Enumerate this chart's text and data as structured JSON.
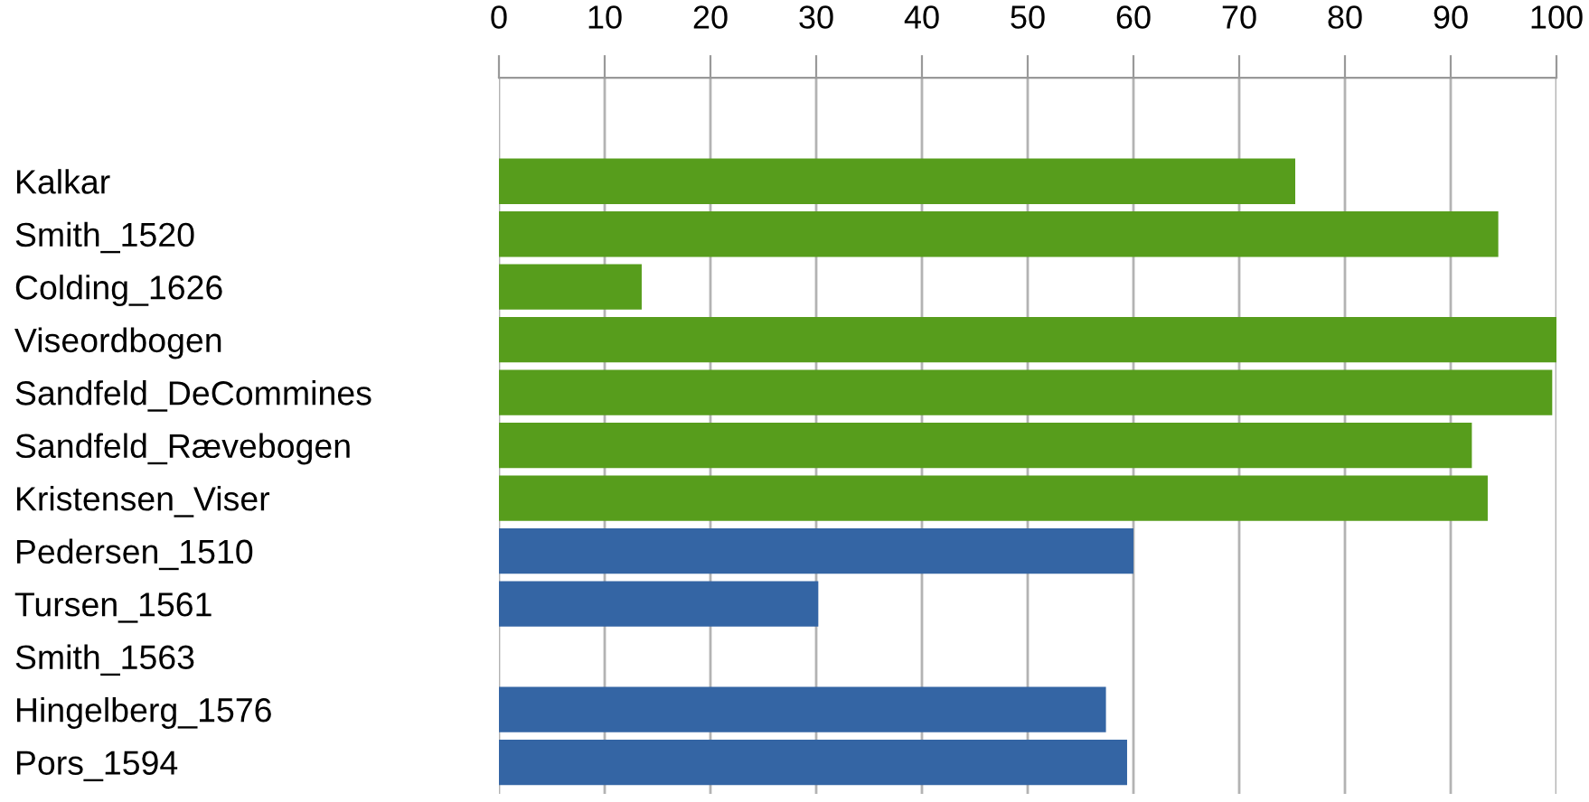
{
  "chart_data": {
    "type": "bar",
    "orientation": "horizontal",
    "categories": [
      "Kalkar",
      "Smith_1520",
      "Colding_1626",
      "Viseordbogen",
      "Sandfeld_DeCommines",
      "Sandfeld_Rævebogen",
      "Kristensen_Viser",
      "Pedersen_1510",
      "Tursen_1561",
      "Smith_1563",
      "Hingelberg_1576",
      "Pors_1594"
    ],
    "values": [
      75.3,
      94.5,
      13.5,
      100,
      99.6,
      92.0,
      93.5,
      60.0,
      30.2,
      0,
      57.4,
      59.4
    ],
    "colors": [
      "#579d1c",
      "#579d1c",
      "#579d1c",
      "#579d1c",
      "#579d1c",
      "#579d1c",
      "#579d1c",
      "#3465a4",
      "#3465a4",
      "#3465a4",
      "#3465a4",
      "#3465a4"
    ],
    "xlim": [
      0,
      100
    ],
    "xticks": [
      0,
      10,
      20,
      30,
      40,
      50,
      60,
      70,
      80,
      90,
      100
    ],
    "grid": "x"
  }
}
